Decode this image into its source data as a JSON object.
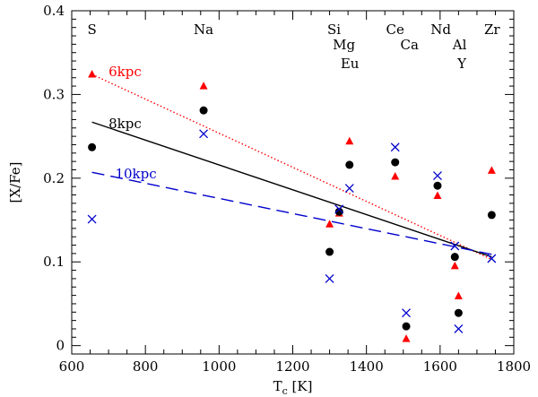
{
  "chart_data": {
    "type": "scatter",
    "xlabel": "T",
    "xlabel_sub": "c",
    "xlabel_unit": "[K]",
    "ylabel": "[X/Fe]",
    "xlim": [
      600,
      1800
    ],
    "ylim": [
      -0.01,
      0.4
    ],
    "xticks": [
      600,
      800,
      1000,
      1200,
      1400,
      1600,
      1800
    ],
    "yticks": [
      "0",
      "0.1",
      "0.2",
      "0.3",
      "0.4"
    ],
    "grid": false,
    "element_labels": [
      {
        "text": "S",
        "x": 655,
        "row": 0
      },
      {
        "text": "Na",
        "x": 958,
        "row": 0
      },
      {
        "text": "Si",
        "x": 1312,
        "row": 0
      },
      {
        "text": "Mg",
        "x": 1339,
        "row": 1
      },
      {
        "text": "Eu",
        "x": 1355,
        "row": 2
      },
      {
        "text": "Ce",
        "x": 1478,
        "row": 0
      },
      {
        "text": "Ca",
        "x": 1517,
        "row": 1
      },
      {
        "text": "Nd",
        "x": 1602,
        "row": 0
      },
      {
        "text": "Al",
        "x": 1653,
        "row": 1
      },
      {
        "text": "Y",
        "x": 1659,
        "row": 2
      },
      {
        "text": "Zr",
        "x": 1741,
        "row": 0
      }
    ],
    "series": [
      {
        "name": "6kpc",
        "marker": "triangle",
        "color": "#ff0000",
        "line_style": "dotted",
        "fit": [
          [
            655,
            0.324
          ],
          [
            1740,
            0.103
          ]
        ],
        "label_at": [
          700,
          0.322
        ],
        "points": [
          [
            655,
            0.324
          ],
          [
            958,
            0.31
          ],
          [
            1300,
            0.145
          ],
          [
            1326,
            0.158
          ],
          [
            1354,
            0.244
          ],
          [
            1478,
            0.202
          ],
          [
            1508,
            0.008
          ],
          [
            1593,
            0.179
          ],
          [
            1640,
            0.095
          ],
          [
            1650,
            0.059
          ],
          [
            1740,
            0.209
          ]
        ]
      },
      {
        "name": "8kpc",
        "marker": "circle",
        "color": "#000000",
        "line_style": "solid",
        "fit": [
          [
            655,
            0.267
          ],
          [
            1740,
            0.106
          ]
        ],
        "label_at": [
          700,
          0.26
        ],
        "points": [
          [
            655,
            0.237
          ],
          [
            958,
            0.281
          ],
          [
            1300,
            0.112
          ],
          [
            1326,
            0.16
          ],
          [
            1354,
            0.216
          ],
          [
            1478,
            0.219
          ],
          [
            1508,
            0.023
          ],
          [
            1593,
            0.191
          ],
          [
            1640,
            0.106
          ],
          [
            1650,
            0.039
          ],
          [
            1740,
            0.156
          ]
        ]
      },
      {
        "name": "10kpc",
        "marker": "cross",
        "color": "#0000cc",
        "line_style": "dashed",
        "fit": [
          [
            655,
            0.207
          ],
          [
            1740,
            0.109
          ]
        ],
        "label_at": [
          718,
          0.2
        ],
        "points": [
          [
            655,
            0.151
          ],
          [
            958,
            0.253
          ],
          [
            1300,
            0.08
          ],
          [
            1326,
            0.163
          ],
          [
            1354,
            0.188
          ],
          [
            1478,
            0.237
          ],
          [
            1508,
            0.039
          ],
          [
            1593,
            0.203
          ],
          [
            1640,
            0.119
          ],
          [
            1650,
            0.02
          ],
          [
            1740,
            0.104
          ]
        ]
      }
    ]
  }
}
